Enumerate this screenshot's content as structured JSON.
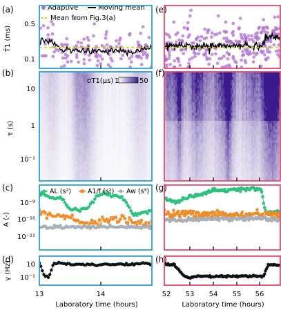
{
  "figure": {
    "colors": {
      "frame_left": "#2a9fd8",
      "frame_right": "#e8486e",
      "adaptive": "#b070d0",
      "moving_mean": "#000000",
      "ref_mean": "#d4d400",
      "A_L": "#2ec27e",
      "A_1f": "#f08c28",
      "A_w": "#a8b0b8",
      "gamma": "#111111",
      "cmap_low": "#ffffff",
      "cmap_high": "#3a1a8c"
    },
    "xaxis": {
      "label": "Laboratory time (hours)",
      "left_ticks": [
        "13",
        "14"
      ],
      "right_ticks": [
        "52",
        "53",
        "54",
        "55",
        "56"
      ]
    }
  },
  "chart_data": [
    {
      "id": "a",
      "panel_label": "(a)",
      "type": "scatter",
      "ylabel": "T̂1 (ms)",
      "yscale": "log",
      "yticks": [
        "0.5",
        "0.1"
      ],
      "legend": [
        "Adaptive",
        "Moving mean",
        "Mean from Fig.3(a)"
      ],
      "xlim": [
        13.0,
        14.9
      ],
      "ylim": [
        0.07,
        0.85
      ],
      "series": [
        {
          "name": "Adaptive",
          "style": "points",
          "scatter_median": 0.18,
          "scatter_spread": 0.45
        },
        {
          "name": "Moving mean",
          "style": "line",
          "x": [
            13.0,
            13.2,
            13.4,
            13.6,
            13.8,
            14.0,
            14.2,
            14.4,
            14.6,
            14.8
          ],
          "y": [
            0.2,
            0.2,
            0.14,
            0.15,
            0.14,
            0.14,
            0.14,
            0.14,
            0.14,
            0.15
          ]
        },
        {
          "name": "Mean from Fig.3(a)",
          "style": "dashed",
          "value": 0.16
        }
      ]
    },
    {
      "id": "e",
      "panel_label": "(e)",
      "type": "scatter",
      "xlim": [
        52.0,
        56.8
      ],
      "ylim": [
        0.07,
        0.85
      ],
      "series": [
        {
          "name": "Adaptive",
          "style": "points",
          "scatter_median": 0.22,
          "scatter_spread": 0.55
        },
        {
          "name": "Moving mean",
          "style": "line",
          "x": [
            52.0,
            52.5,
            53.0,
            53.5,
            54.0,
            54.5,
            55.0,
            55.5,
            56.0,
            56.2,
            56.5,
            56.8
          ],
          "y": [
            0.17,
            0.17,
            0.17,
            0.17,
            0.17,
            0.17,
            0.17,
            0.17,
            0.17,
            0.24,
            0.25,
            0.24
          ]
        },
        {
          "name": "Mean from Fig.3(a)",
          "style": "dashed",
          "value": 0.16
        }
      ]
    },
    {
      "id": "b",
      "panel_label": "(b)",
      "type": "heatmap",
      "ylabel": "τ (s)",
      "yscale": "log",
      "yticks": [
        "10",
        "1",
        "10⁻¹"
      ],
      "ylim": [
        0.02,
        20
      ],
      "colorbar": {
        "label": "σT1(μs)",
        "min_label": "1",
        "max_label": "50",
        "min": 1,
        "max": 50
      },
      "xlim": [
        13.0,
        14.9
      ],
      "intensity": 0.3
    },
    {
      "id": "f",
      "panel_label": "(f)",
      "type": "heatmap",
      "ylim": [
        0.02,
        20
      ],
      "xlim": [
        52.0,
        56.8
      ],
      "intensity": 0.85
    },
    {
      "id": "c",
      "panel_label": "(c)",
      "type": "line",
      "ylabel": "A (-)",
      "yscale": "log",
      "yticks": [
        "10⁻⁹",
        "10⁻¹⁰",
        "10⁻¹¹"
      ],
      "ylim": [
        1e-12,
        5e-09
      ],
      "legend": [
        "AL (s²)",
        "A1/f (s²)",
        "Aw (s³)"
      ],
      "xlim": [
        13.0,
        14.9
      ],
      "series": [
        {
          "name": "AL (s²)",
          "x": [
            13.0,
            13.2,
            13.4,
            13.5,
            13.6,
            13.8,
            14.0,
            14.2,
            14.4,
            14.6,
            14.8
          ],
          "y": [
            1.5e-09,
            1e-09,
            8e-10,
            2e-10,
            2e-10,
            2e-10,
            1.5e-09,
            1.5e-09,
            1e-09,
            1e-10,
            1.5e-10
          ]
        },
        {
          "name": "A1/f (s²)",
          "x": [
            13.0,
            13.2,
            13.4,
            13.6,
            13.8,
            14.0,
            14.2,
            14.4,
            14.6,
            14.8
          ],
          "y": [
            1e-10,
            1e-10,
            9e-11,
            5e-11,
            3e-11,
            4e-11,
            5e-11,
            5e-11,
            4e-11,
            3e-11
          ]
        },
        {
          "name": "Aw (s³)",
          "x": [
            13.0,
            13.2,
            13.4,
            13.6,
            13.8,
            14.0,
            14.2,
            14.4,
            14.6,
            14.8
          ],
          "y": [
            2e-11,
            2e-11,
            2e-11,
            2e-11,
            2e-11,
            2e-11,
            2e-11,
            2e-11,
            2e-11,
            2e-11
          ]
        }
      ]
    },
    {
      "id": "g",
      "panel_label": "(g)",
      "type": "line",
      "ylim": [
        1e-12,
        5e-09
      ],
      "xlim": [
        52.0,
        56.8
      ],
      "series": [
        {
          "name": "AL (s²)",
          "x": [
            52.0,
            52.5,
            53.0,
            53.5,
            54.0,
            54.5,
            55.0,
            55.5,
            56.0,
            56.2,
            56.5,
            56.8
          ],
          "y": [
            8e-10,
            5e-10,
            1e-09,
            1.5e-09,
            2.5e-09,
            2.5e-09,
            3e-09,
            3e-09,
            3e-09,
            1.2e-10,
            1.5e-10,
            1.5e-10
          ]
        },
        {
          "name": "A1/f (s²)",
          "x": [
            52.0,
            52.5,
            53.0,
            54.0,
            55.0,
            56.0,
            56.8
          ],
          "y": [
            1.2e-10,
            1.1e-10,
            1e-10,
            1.1e-10,
            1e-10,
            1e-10,
            1e-10
          ]
        },
        {
          "name": "Aw (s³)",
          "x": [
            52.0,
            53.0,
            54.0,
            55.0,
            56.0,
            56.8
          ],
          "y": [
            5e-11,
            5e-11,
            6e-11,
            6e-11,
            6e-11,
            5e-11
          ]
        }
      ]
    },
    {
      "id": "d",
      "panel_label": "(d)",
      "type": "line",
      "ylabel": "γ (Hz)",
      "yscale": "log",
      "yticks": [
        "10",
        "10⁻¹"
      ],
      "ylim": [
        0.01,
        80
      ],
      "xlim": [
        13.0,
        14.9
      ],
      "series": [
        {
          "name": "γ",
          "x": [
            13.0,
            13.08,
            13.16,
            13.24,
            13.32,
            13.4,
            13.6,
            13.8,
            14.0,
            14.2,
            14.4,
            14.6,
            14.8,
            14.9
          ],
          "y": [
            10,
            0.2,
            0.1,
            8,
            10,
            8,
            6,
            6,
            6,
            6,
            6,
            6,
            10,
            6
          ]
        }
      ]
    },
    {
      "id": "h",
      "panel_label": "(h)",
      "type": "line",
      "ylim": [
        0.01,
        80
      ],
      "xlim": [
        52.0,
        56.8
      ],
      "series": [
        {
          "name": "γ",
          "x": [
            52.0,
            52.4,
            52.8,
            53.0,
            53.4,
            53.8,
            54.2,
            54.6,
            55.0,
            55.4,
            55.8,
            56.1,
            56.3,
            56.8
          ],
          "y": [
            6,
            6,
            0.2,
            0.1,
            0.15,
            0.15,
            0.15,
            0.15,
            0.15,
            0.15,
            0.15,
            0.15,
            6,
            5
          ]
        }
      ]
    }
  ]
}
